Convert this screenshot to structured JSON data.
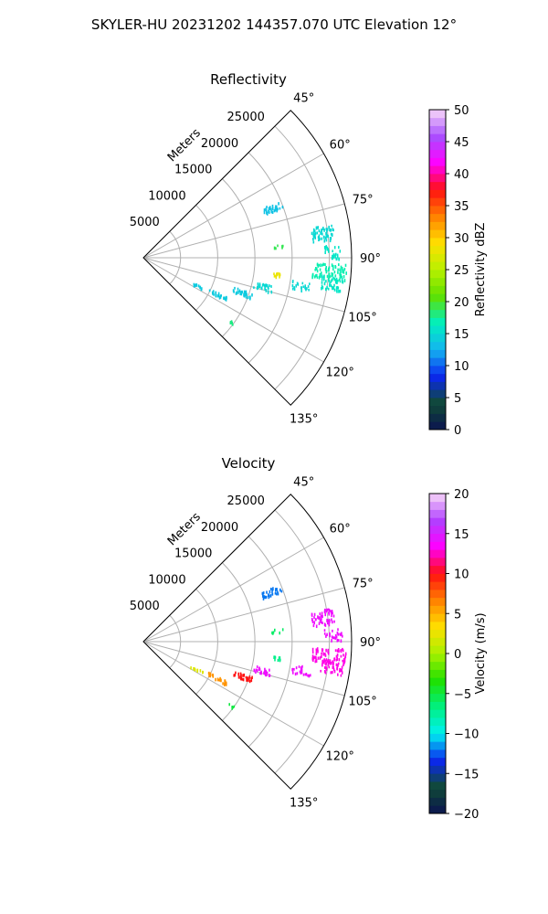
{
  "figure": {
    "title": "SKYLER-HU  20231202  144357.070 UTC Elevation 12°"
  },
  "chart_data": [
    {
      "type": "polar-sector",
      "title": "Reflectivity",
      "range_label": "Meters",
      "range_ticks": [
        "5000",
        "10000",
        "15000",
        "20000",
        "25000"
      ],
      "range_values": [
        5000,
        10000,
        15000,
        20000,
        25000
      ],
      "range_max": 28000,
      "angle_ticks": [
        "45°",
        "60°",
        "75°",
        "90°",
        "105°",
        "120°",
        "135°"
      ],
      "angle_values": [
        45,
        60,
        75,
        90,
        105,
        120,
        135
      ],
      "colorbar": {
        "label": "Reflectivity dBZ",
        "min": 0,
        "max": 50,
        "ticks": [
          "0",
          "5",
          "10",
          "15",
          "20",
          "25",
          "30",
          "35",
          "40",
          "45",
          "50"
        ],
        "tick_values": [
          0,
          5,
          10,
          15,
          20,
          25,
          30,
          35,
          40,
          45,
          50
        ],
        "stops": [
          "#0b1450",
          "#104a35",
          "#0b27f0",
          "#14b4f0",
          "#00f0c0",
          "#5fe000",
          "#b8f000",
          "#ffe000",
          "#ff8000",
          "#ff1010",
          "#ff00ff",
          "#a84fff",
          "#f8d8f8"
        ]
      },
      "clusters": [
        {
          "az": 68.5,
          "r": 18500,
          "da": 1.5,
          "dr": 1400,
          "n": 34,
          "value": 13.5
        },
        {
          "az": 82.0,
          "r": 24300,
          "da": 2.4,
          "dr": 1500,
          "n": 60,
          "value": 15
        },
        {
          "az": 88.0,
          "r": 25500,
          "da": 2.0,
          "dr": 1200,
          "n": 26,
          "value": 16
        },
        {
          "az": 94.0,
          "r": 25000,
          "da": 2.4,
          "dr": 2300,
          "n": 80,
          "value": 17
        },
        {
          "az": 97.5,
          "r": 25500,
          "da": 2.2,
          "dr": 1500,
          "n": 40,
          "value": 16
        },
        {
          "az": 100.0,
          "r": 21500,
          "da": 1.6,
          "dr": 1300,
          "n": 22,
          "value": 15
        },
        {
          "az": 97.0,
          "r": 18000,
          "da": 1.0,
          "dr": 500,
          "n": 10,
          "value": 28
        },
        {
          "az": 103.5,
          "r": 16500,
          "da": 1.6,
          "dr": 1300,
          "n": 26,
          "value": 15
        },
        {
          "az": 109.0,
          "r": 14000,
          "da": 1.5,
          "dr": 1300,
          "n": 30,
          "value": 14
        },
        {
          "az": 116.0,
          "r": 11000,
          "da": 1.3,
          "dr": 1400,
          "n": 28,
          "value": 14
        },
        {
          "az": 117.0,
          "r": 8000,
          "da": 1.0,
          "dr": 900,
          "n": 12,
          "value": 14
        },
        {
          "az": 126.0,
          "r": 14500,
          "da": 0.8,
          "dr": 400,
          "n": 6,
          "value": 18
        },
        {
          "az": 85.0,
          "r": 18000,
          "da": 0.8,
          "dr": 800,
          "n": 8,
          "value": 19
        }
      ]
    },
    {
      "type": "polar-sector",
      "title": "Velocity",
      "range_label": "Meters",
      "range_ticks": [
        "5000",
        "10000",
        "15000",
        "20000",
        "25000"
      ],
      "range_values": [
        5000,
        10000,
        15000,
        20000,
        25000
      ],
      "range_max": 28000,
      "angle_ticks": [
        "45°",
        "60°",
        "75°",
        "90°",
        "105°",
        "120°",
        "135°"
      ],
      "angle_values": [
        45,
        60,
        75,
        90,
        105,
        120,
        135
      ],
      "colorbar": {
        "label": "Velocity (m/s)",
        "min": -20,
        "max": 20,
        "ticks": [
          "−20",
          "−15",
          "−10",
          "−5",
          "0",
          "5",
          "10",
          "15",
          "20"
        ],
        "tick_values": [
          -20,
          -15,
          -10,
          -5,
          0,
          5,
          10,
          15,
          20
        ],
        "stops": [
          "#0b1450",
          "#104a35",
          "#0b27f0",
          "#00f0f0",
          "#00f080",
          "#20e000",
          "#a8f000",
          "#ffe000",
          "#ff8000",
          "#ff1010",
          "#ff00ff",
          "#b040ff",
          "#f8d8f8"
        ]
      },
      "clusters": [
        {
          "az": 68.5,
          "r": 18500,
          "da": 1.5,
          "dr": 1400,
          "n": 30,
          "value": -12
        },
        {
          "az": 82.0,
          "r": 24300,
          "da": 2.4,
          "dr": 1500,
          "n": 60,
          "value": 14
        },
        {
          "az": 88.0,
          "r": 25500,
          "da": 2.0,
          "dr": 1200,
          "n": 26,
          "value": 14
        },
        {
          "az": 94.0,
          "r": 25000,
          "da": 2.4,
          "dr": 2300,
          "n": 80,
          "value": 13
        },
        {
          "az": 97.5,
          "r": 25500,
          "da": 2.2,
          "dr": 1500,
          "n": 40,
          "value": 13
        },
        {
          "az": 100.0,
          "r": 21500,
          "da": 1.6,
          "dr": 1300,
          "n": 22,
          "value": 14
        },
        {
          "az": 97.0,
          "r": 18000,
          "da": 1.0,
          "dr": 500,
          "n": 10,
          "value": -7
        },
        {
          "az": 103.5,
          "r": 16500,
          "da": 1.6,
          "dr": 1300,
          "n": 26,
          "value": 14
        },
        {
          "az": 109.0,
          "r": 14000,
          "da": 1.5,
          "dr": 1300,
          "n": 30,
          "value": 10
        },
        {
          "az": 116.0,
          "r": 11000,
          "da": 1.3,
          "dr": 1400,
          "n": 28,
          "value": 6
        },
        {
          "az": 117.0,
          "r": 8000,
          "da": 1.0,
          "dr": 900,
          "n": 12,
          "value": 2
        },
        {
          "az": 126.0,
          "r": 14500,
          "da": 0.8,
          "dr": 400,
          "n": 6,
          "value": -5
        },
        {
          "az": 85.0,
          "r": 18000,
          "da": 0.8,
          "dr": 800,
          "n": 8,
          "value": -6
        }
      ]
    }
  ]
}
